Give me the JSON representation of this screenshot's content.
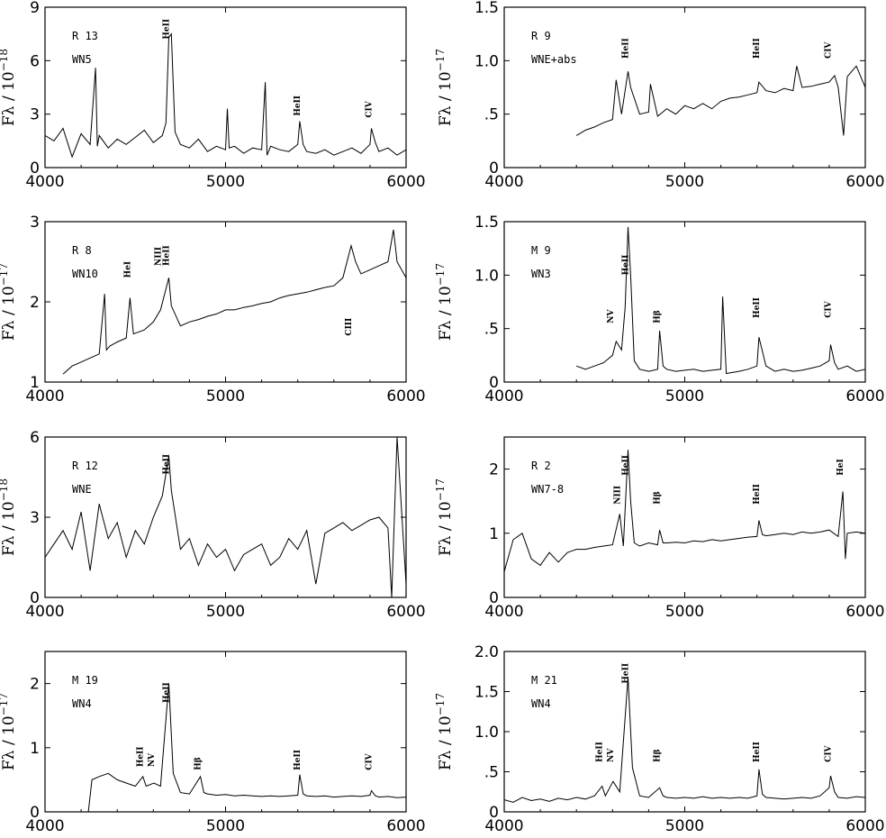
{
  "chart_data": [
    {
      "type": "line",
      "name": "R 13",
      "spectype": "WN5",
      "xlim": [
        4000,
        6000
      ],
      "ylim": [
        0,
        9
      ],
      "xticks": [
        "4000",
        "5000",
        "6000"
      ],
      "yticks": [
        {
          "v": 0,
          "t": "0"
        },
        {
          "v": 3,
          "t": "3"
        },
        {
          "v": 6,
          "t": "6"
        },
        {
          "v": 9,
          "t": "9"
        }
      ],
      "ylabel": "Fλ / 10",
      "yexp": "−18",
      "lines": [
        {
          "label": "HeII",
          "x": 4686,
          "y": 7.2
        },
        {
          "label": "HeII",
          "x": 5411,
          "y": 2.9
        },
        {
          "label": "CIV",
          "x": 5808,
          "y": 2.8
        }
      ],
      "x": [
        4000,
        4050,
        4100,
        4150,
        4200,
        4250,
        4280,
        4290,
        4300,
        4350,
        4400,
        4450,
        4500,
        4550,
        4600,
        4650,
        4670,
        4686,
        4700,
        4720,
        4750,
        4800,
        4850,
        4900,
        4950,
        5000,
        5010,
        5020,
        5050,
        5100,
        5150,
        5200,
        5220,
        5230,
        5250,
        5300,
        5350,
        5400,
        5411,
        5430,
        5450,
        5500,
        5550,
        5600,
        5650,
        5700,
        5750,
        5800,
        5808,
        5830,
        5850,
        5900,
        5950,
        6000
      ],
      "y": [
        1.8,
        1.5,
        2.2,
        0.6,
        1.9,
        1.3,
        5.6,
        1.2,
        1.8,
        1.1,
        1.6,
        1.3,
        1.7,
        2.1,
        1.4,
        1.8,
        2.5,
        7.3,
        7.5,
        2.0,
        1.3,
        1.1,
        1.6,
        0.9,
        1.2,
        1.0,
        3.3,
        1.1,
        1.2,
        0.8,
        1.1,
        1.0,
        4.8,
        0.7,
        1.2,
        1.0,
        0.9,
        1.3,
        2.6,
        1.3,
        0.9,
        0.8,
        1.0,
        0.7,
        0.9,
        1.1,
        0.8,
        1.3,
        2.2,
        1.4,
        0.9,
        1.1,
        0.7,
        1.0
      ]
    },
    {
      "type": "line",
      "name": "R 9",
      "spectype": "WNE+abs",
      "xlim": [
        4000,
        6000
      ],
      "ylim": [
        0,
        1.5
      ],
      "xticks": [
        "4000",
        "5000",
        "6000"
      ],
      "yticks": [
        {
          "v": 0,
          "t": "0"
        },
        {
          "v": 0.5,
          "t": ".5"
        },
        {
          "v": 1.0,
          "t": "1.0"
        },
        {
          "v": 1.5,
          "t": "1.5"
        }
      ],
      "ylabel": "Fλ / 10",
      "yexp": "−17",
      "lines": [
        {
          "label": "HeII",
          "x": 4686,
          "y": 1.02
        },
        {
          "label": "HeII",
          "x": 5411,
          "y": 1.02
        },
        {
          "label": "CIV",
          "x": 5808,
          "y": 1.02
        }
      ],
      "x": [
        4400,
        4450,
        4500,
        4550,
        4600,
        4620,
        4650,
        4686,
        4700,
        4750,
        4800,
        4810,
        4850,
        4900,
        4950,
        5000,
        5050,
        5100,
        5150,
        5200,
        5250,
        5300,
        5350,
        5400,
        5411,
        5450,
        5500,
        5550,
        5600,
        5620,
        5650,
        5700,
        5750,
        5800,
        5830,
        5850,
        5880,
        5900,
        5950,
        6000
      ],
      "y": [
        0.3,
        0.35,
        0.38,
        0.42,
        0.45,
        0.82,
        0.5,
        0.9,
        0.75,
        0.5,
        0.52,
        0.78,
        0.48,
        0.55,
        0.5,
        0.58,
        0.55,
        0.6,
        0.55,
        0.62,
        0.65,
        0.66,
        0.68,
        0.7,
        0.8,
        0.72,
        0.7,
        0.74,
        0.72,
        0.95,
        0.75,
        0.76,
        0.78,
        0.8,
        0.86,
        0.75,
        0.3,
        0.85,
        0.95,
        0.75
      ]
    },
    {
      "type": "line",
      "name": "R 8",
      "spectype": "WN10",
      "xlim": [
        4000,
        6000
      ],
      "ylim": [
        1,
        3
      ],
      "xticks": [
        "4000",
        "5000",
        "6000"
      ],
      "yticks": [
        {
          "v": 1,
          "t": "1"
        },
        {
          "v": 2,
          "t": "2"
        },
        {
          "v": 3,
          "t": "3"
        }
      ],
      "ylabel": "Fλ / 10",
      "yexp": "−17",
      "lines": [
        {
          "label": "HeI",
          "x": 4471,
          "y": 2.3
        },
        {
          "label": "NIII",
          "x": 4640,
          "y": 2.45
        },
        {
          "label": "HeII",
          "x": 4686,
          "y": 2.45
        },
        {
          "label": "CIII",
          "x": 5696,
          "y": 1.8,
          "below": true
        }
      ],
      "x": [
        4100,
        4150,
        4200,
        4250,
        4300,
        4330,
        4340,
        4360,
        4400,
        4450,
        4471,
        4490,
        4550,
        4600,
        4640,
        4686,
        4700,
        4750,
        4800,
        4850,
        4900,
        4950,
        5000,
        5050,
        5100,
        5150,
        5200,
        5250,
        5300,
        5350,
        5400,
        5450,
        5500,
        5550,
        5600,
        5650,
        5696,
        5720,
        5750,
        5800,
        5850,
        5900,
        5930,
        5950,
        6000
      ],
      "y": [
        1.1,
        1.2,
        1.25,
        1.3,
        1.35,
        2.1,
        1.4,
        1.45,
        1.5,
        1.55,
        2.05,
        1.6,
        1.65,
        1.75,
        1.9,
        2.3,
        1.95,
        1.7,
        1.75,
        1.78,
        1.82,
        1.85,
        1.9,
        1.9,
        1.93,
        1.95,
        1.98,
        2.0,
        2.05,
        2.08,
        2.1,
        2.12,
        2.15,
        2.18,
        2.2,
        2.3,
        2.7,
        2.5,
        2.35,
        2.4,
        2.45,
        2.5,
        2.9,
        2.5,
        2.3
      ]
    },
    {
      "type": "line",
      "name": "M 9",
      "spectype": "WN3",
      "xlim": [
        4000,
        6000
      ],
      "ylim": [
        0,
        1.5
      ],
      "xticks": [
        "4000",
        "5000",
        "6000"
      ],
      "yticks": [
        {
          "v": 0,
          "t": "0"
        },
        {
          "v": 0.5,
          "t": ".5"
        },
        {
          "v": 1.0,
          "t": "1.0"
        },
        {
          "v": 1.5,
          "t": "1.5"
        }
      ],
      "ylabel": "Fλ / 10",
      "yexp": "−17",
      "lines": [
        {
          "label": "NV",
          "x": 4603,
          "y": 0.55
        },
        {
          "label": "HeII",
          "x": 4686,
          "y": 1.0
        },
        {
          "label": "Hβ",
          "x": 4861,
          "y": 0.55
        },
        {
          "label": "HeII",
          "x": 5411,
          "y": 0.6
        },
        {
          "label": "CIV",
          "x": 5808,
          "y": 0.6
        }
      ],
      "x": [
        4400,
        4450,
        4500,
        4550,
        4600,
        4620,
        4650,
        4670,
        4686,
        4700,
        4720,
        4750,
        4800,
        4850,
        4861,
        4880,
        4900,
        4950,
        5000,
        5050,
        5100,
        5150,
        5200,
        5210,
        5230,
        5300,
        5350,
        5400,
        5411,
        5450,
        5500,
        5550,
        5600,
        5650,
        5700,
        5750,
        5800,
        5808,
        5830,
        5850,
        5900,
        5950,
        6000
      ],
      "y": [
        0.15,
        0.12,
        0.15,
        0.18,
        0.25,
        0.38,
        0.3,
        0.7,
        1.45,
        1.0,
        0.2,
        0.12,
        0.1,
        0.12,
        0.48,
        0.15,
        0.12,
        0.1,
        0.11,
        0.12,
        0.1,
        0.11,
        0.12,
        0.8,
        0.08,
        0.1,
        0.12,
        0.15,
        0.42,
        0.15,
        0.1,
        0.12,
        0.1,
        0.11,
        0.13,
        0.15,
        0.2,
        0.35,
        0.18,
        0.12,
        0.15,
        0.1,
        0.12
      ]
    },
    {
      "type": "line",
      "name": "R 12",
      "spectype": "WNE",
      "xlim": [
        4000,
        6000
      ],
      "ylim": [
        0,
        6
      ],
      "xticks": [
        "4000",
        "5000",
        "6000"
      ],
      "yticks": [
        {
          "v": 0,
          "t": "0"
        },
        {
          "v": 3,
          "t": "3"
        },
        {
          "v": 6,
          "t": "6"
        }
      ],
      "ylabel": "Fλ / 10",
      "yexp": "−18",
      "lines": [
        {
          "label": "HeII",
          "x": 4686,
          "y": 4.6
        }
      ],
      "x": [
        4000,
        4050,
        4100,
        4150,
        4200,
        4250,
        4300,
        4350,
        4400,
        4450,
        4500,
        4550,
        4600,
        4650,
        4686,
        4700,
        4750,
        4800,
        4850,
        4900,
        4950,
        5000,
        5050,
        5100,
        5150,
        5200,
        5250,
        5300,
        5350,
        5400,
        5450,
        5500,
        5550,
        5600,
        5650,
        5700,
        5750,
        5800,
        5850,
        5900,
        5920,
        5950,
        6000
      ],
      "y": [
        1.5,
        2.0,
        2.5,
        1.8,
        3.2,
        1.0,
        3.5,
        2.2,
        2.8,
        1.5,
        2.5,
        2.0,
        3.0,
        3.8,
        5.3,
        4.0,
        1.8,
        2.2,
        1.2,
        2.0,
        1.5,
        1.8,
        1.0,
        1.6,
        1.8,
        2.0,
        1.2,
        1.5,
        2.2,
        1.8,
        2.5,
        0.5,
        2.4,
        2.6,
        2.8,
        2.5,
        2.7,
        2.9,
        3.0,
        2.6,
        0.0,
        6.0,
        0.5
      ]
    },
    {
      "type": "line",
      "name": "R 2",
      "spectype": "WN7-8",
      "xlim": [
        4000,
        6000
      ],
      "ylim": [
        0,
        2.5
      ],
      "xticks": [
        "4000",
        "5000",
        "6000"
      ],
      "yticks": [
        {
          "v": 0,
          "t": "0"
        },
        {
          "v": 1,
          "t": "1"
        },
        {
          "v": 2,
          "t": "2"
        }
      ],
      "ylabel": "Fλ / 10",
      "yexp": "−17",
      "lines": [
        {
          "label": "NIII",
          "x": 4640,
          "y": 1.45
        },
        {
          "label": "HeII",
          "x": 4686,
          "y": 1.9
        },
        {
          "label": "Hβ",
          "x": 4861,
          "y": 1.45
        },
        {
          "label": "HeII",
          "x": 5411,
          "y": 1.45
        },
        {
          "label": "HeI",
          "x": 5876,
          "y": 1.9
        }
      ],
      "x": [
        4000,
        4050,
        4100,
        4150,
        4200,
        4250,
        4300,
        4350,
        4400,
        4450,
        4500,
        4550,
        4600,
        4640,
        4660,
        4686,
        4700,
        4720,
        4750,
        4800,
        4850,
        4861,
        4880,
        4900,
        4950,
        5000,
        5050,
        5100,
        5150,
        5200,
        5250,
        5300,
        5350,
        5400,
        5411,
        5430,
        5450,
        5500,
        5550,
        5600,
        5650,
        5700,
        5750,
        5800,
        5850,
        5876,
        5890,
        5900,
        5950,
        6000
      ],
      "y": [
        0.4,
        0.9,
        1.0,
        0.6,
        0.5,
        0.7,
        0.55,
        0.7,
        0.75,
        0.75,
        0.78,
        0.8,
        0.82,
        1.3,
        0.8,
        2.3,
        1.5,
        0.85,
        0.8,
        0.85,
        0.82,
        1.05,
        0.85,
        0.85,
        0.86,
        0.85,
        0.88,
        0.87,
        0.9,
        0.88,
        0.9,
        0.92,
        0.94,
        0.95,
        1.2,
        0.98,
        0.96,
        0.98,
        1.0,
        0.98,
        1.02,
        1.0,
        1.02,
        1.05,
        0.95,
        1.65,
        0.6,
        1.0,
        1.02,
        1.0
      ]
    },
    {
      "type": "line",
      "name": "M 19",
      "spectype": "WN4",
      "xlim": [
        4000,
        6000
      ],
      "ylim": [
        0,
        2.5
      ],
      "xticks": [
        "4000",
        "5000",
        "6000"
      ],
      "yticks": [
        {
          "v": 0,
          "t": "0"
        },
        {
          "v": 1,
          "t": "1"
        },
        {
          "v": 2,
          "t": "2"
        }
      ],
      "ylabel": "Fλ / 10",
      "yexp": "−17",
      "lines": [
        {
          "label": "HeII",
          "x": 4542,
          "y": 0.7
        },
        {
          "label": "NV",
          "x": 4603,
          "y": 0.7
        },
        {
          "label": "HeII",
          "x": 4686,
          "y": 1.7
        },
        {
          "label": "Hβ",
          "x": 4861,
          "y": 0.65
        },
        {
          "label": "HeII",
          "x": 5411,
          "y": 0.65
        },
        {
          "label": "CIV",
          "x": 5808,
          "y": 0.65
        }
      ],
      "x": [
        4240,
        4260,
        4300,
        4350,
        4400,
        4450,
        4500,
        4542,
        4560,
        4603,
        4640,
        4686,
        4710,
        4750,
        4800,
        4861,
        4880,
        4900,
        4950,
        5000,
        5050,
        5100,
        5150,
        5200,
        5250,
        5300,
        5350,
        5400,
        5411,
        5430,
        5450,
        5500,
        5550,
        5600,
        5650,
        5700,
        5750,
        5800,
        5808,
        5830,
        5850,
        5900,
        5950,
        6000
      ],
      "y": [
        0.0,
        0.5,
        0.55,
        0.6,
        0.5,
        0.45,
        0.4,
        0.55,
        0.4,
        0.45,
        0.4,
        2.0,
        0.6,
        0.3,
        0.28,
        0.55,
        0.3,
        0.28,
        0.26,
        0.27,
        0.25,
        0.26,
        0.25,
        0.24,
        0.25,
        0.24,
        0.25,
        0.26,
        0.58,
        0.28,
        0.25,
        0.24,
        0.25,
        0.23,
        0.24,
        0.25,
        0.24,
        0.26,
        0.33,
        0.25,
        0.23,
        0.24,
        0.22,
        0.23
      ]
    },
    {
      "type": "line",
      "name": "M 21",
      "spectype": "WN4",
      "xlim": [
        4000,
        6000
      ],
      "ylim": [
        0,
        2.0
      ],
      "xticks": [
        "4000",
        "5000",
        "6000"
      ],
      "yticks": [
        {
          "v": 0,
          "t": "0"
        },
        {
          "v": 0.5,
          "t": ".5"
        },
        {
          "v": 1.0,
          "t": "1.0"
        },
        {
          "v": 1.5,
          "t": "1.5"
        },
        {
          "v": 2.0,
          "t": "2.0"
        }
      ],
      "ylabel": "Fλ / 10",
      "yexp": "−17",
      "lines": [
        {
          "label": "HeII",
          "x": 4542,
          "y": 0.62
        },
        {
          "label": "NV",
          "x": 4603,
          "y": 0.62
        },
        {
          "label": "HeII",
          "x": 4686,
          "y": 1.6
        },
        {
          "label": "Hβ",
          "x": 4861,
          "y": 0.62
        },
        {
          "label": "HeII",
          "x": 5411,
          "y": 0.62
        },
        {
          "label": "CIV",
          "x": 5808,
          "y": 0.62
        }
      ],
      "x": [
        4000,
        4050,
        4100,
        4150,
        4200,
        4250,
        4300,
        4350,
        4400,
        4450,
        4500,
        4542,
        4560,
        4603,
        4640,
        4686,
        4710,
        4750,
        4800,
        4861,
        4880,
        4900,
        4950,
        5000,
        5050,
        5100,
        5150,
        5200,
        5250,
        5300,
        5350,
        5400,
        5411,
        5430,
        5450,
        5500,
        5550,
        5600,
        5650,
        5700,
        5750,
        5800,
        5808,
        5830,
        5850,
        5900,
        5950,
        6000
      ],
      "y": [
        0.15,
        0.12,
        0.18,
        0.14,
        0.16,
        0.13,
        0.17,
        0.15,
        0.18,
        0.16,
        0.2,
        0.32,
        0.2,
        0.38,
        0.25,
        1.68,
        0.55,
        0.2,
        0.18,
        0.3,
        0.2,
        0.18,
        0.17,
        0.18,
        0.17,
        0.19,
        0.17,
        0.18,
        0.17,
        0.18,
        0.17,
        0.2,
        0.53,
        0.22,
        0.18,
        0.17,
        0.16,
        0.17,
        0.18,
        0.17,
        0.2,
        0.3,
        0.45,
        0.25,
        0.18,
        0.17,
        0.19,
        0.18
      ]
    }
  ]
}
